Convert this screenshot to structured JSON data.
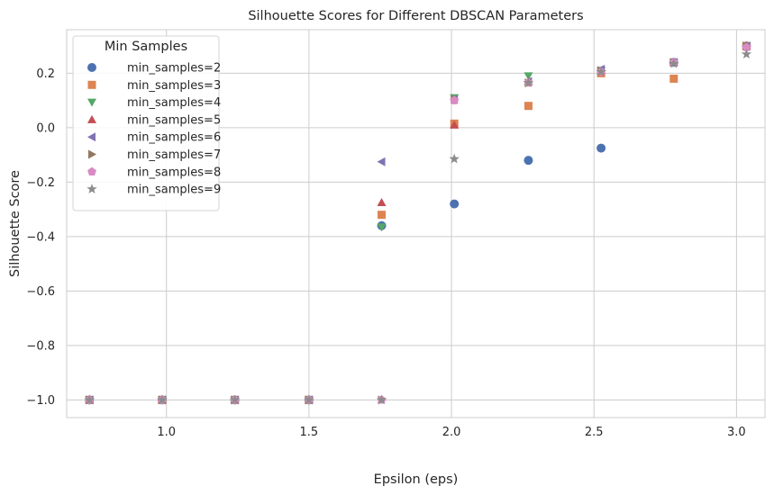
{
  "chart_data": {
    "type": "scatter",
    "title": "Silhouette Scores for Different DBSCAN Parameters",
    "xlabel": "Epsilon (eps)",
    "ylabel": "Silhouette Score",
    "xlim": [
      0.65,
      3.1
    ],
    "ylim": [
      -1.065,
      0.36
    ],
    "x_ticks": [
      1.0,
      1.5,
      2.0,
      2.5,
      3.0
    ],
    "x_tick_labels": [
      "1.0",
      "1.5",
      "2.0",
      "2.5",
      "3.0"
    ],
    "y_ticks": [
      -1.0,
      -0.8,
      -0.6,
      -0.4,
      -0.2,
      0.0,
      0.2
    ],
    "y_tick_labels": [
      "−1.0",
      "−0.8",
      "−0.6",
      "−0.4",
      "−0.2",
      "0.0",
      "0.2"
    ],
    "grid": true,
    "legend": {
      "title": "Min Samples",
      "position": "top-left"
    },
    "x": [
      0.73,
      0.985,
      1.24,
      1.5,
      1.755,
      2.01,
      2.27,
      2.525,
      2.78,
      3.035
    ],
    "series": [
      {
        "name": "min_samples=2",
        "marker": "circle",
        "color": "#4c72b0",
        "values": [
          -1.0,
          -1.0,
          -1.0,
          -1.0,
          -0.36,
          -0.28,
          -0.12,
          -0.075,
          0.24,
          0.3
        ]
      },
      {
        "name": "min_samples=3",
        "marker": "square",
        "color": "#dd8452",
        "values": [
          -1.0,
          -1.0,
          -1.0,
          -1.0,
          -0.32,
          0.015,
          0.08,
          0.2,
          0.18,
          0.3
        ]
      },
      {
        "name": "min_samples=4",
        "marker": "triangle-down",
        "color": "#55a868",
        "values": [
          -1.0,
          -1.0,
          -1.0,
          -1.0,
          -0.365,
          0.11,
          0.19,
          0.21,
          0.24,
          0.3
        ]
      },
      {
        "name": "min_samples=5",
        "marker": "triangle-up",
        "color": "#c44e52",
        "values": [
          -1.0,
          -1.0,
          -1.0,
          -1.0,
          -0.275,
          0.01,
          0.17,
          0.21,
          0.24,
          0.3
        ]
      },
      {
        "name": "min_samples=6",
        "marker": "triangle-left",
        "color": "#8172b3",
        "values": [
          -1.0,
          -1.0,
          -1.0,
          -1.0,
          -0.125,
          0.105,
          0.17,
          0.215,
          0.24,
          0.3
        ]
      },
      {
        "name": "min_samples=7",
        "marker": "triangle-right",
        "color": "#937860",
        "values": [
          -1.0,
          -1.0,
          -1.0,
          -1.0,
          -1.0,
          0.105,
          0.165,
          0.21,
          0.24,
          0.3
        ]
      },
      {
        "name": "min_samples=8",
        "marker": "pentagon",
        "color": "#da8bc3",
        "values": [
          -1.0,
          -1.0,
          -1.0,
          -1.0,
          -1.0,
          0.1,
          0.165,
          0.205,
          0.24,
          0.295
        ]
      },
      {
        "name": "min_samples=9",
        "marker": "star",
        "color": "#8c8c8c",
        "values": [
          -1.0,
          -1.0,
          -1.0,
          -1.0,
          -1.0,
          -0.115,
          0.165,
          0.205,
          0.235,
          0.27
        ]
      }
    ]
  }
}
